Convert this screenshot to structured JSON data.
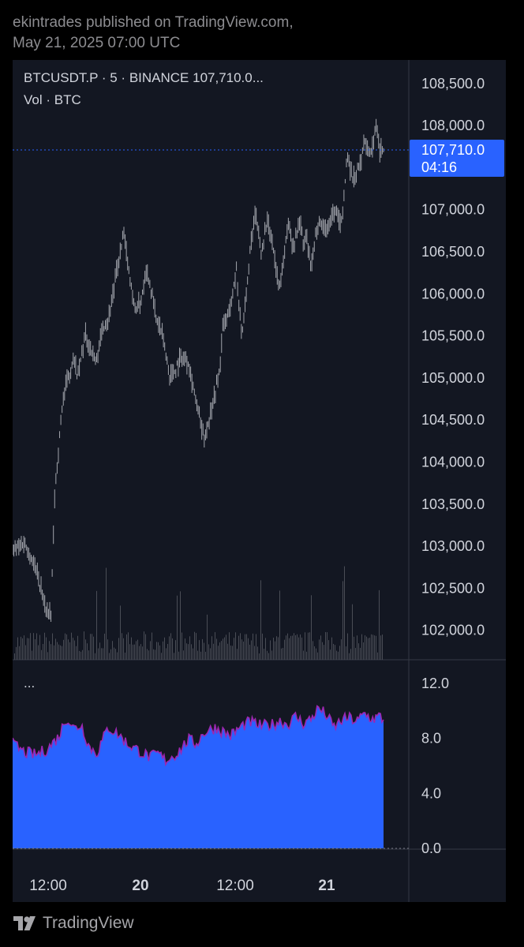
{
  "header": {
    "line1": "ekintrades published on TradingView.com,",
    "line2": "May 21, 2025 07:00 UTC"
  },
  "legend": {
    "symbol_line": "BTCUSDT.P · 5 · BINANCE  107,710.0...",
    "volume_line": "Vol · BTC",
    "indicator_line": "..."
  },
  "price_tag": {
    "price": "107,710.0",
    "countdown": "04:16"
  },
  "footer": {
    "brand": "TradingView",
    "logo_icon": "tradingview-logo-icon"
  },
  "colors": {
    "background": "#131722",
    "candle": "#a3a6ad",
    "volume": "#4a4d56",
    "indicator_fill": "#2962ff",
    "indicator_line": "#9c27b0",
    "price_line": "#2962ff",
    "price_tag": "#2962ff"
  },
  "chart_data": [
    {
      "type": "line",
      "title": "BTCUSDT.P · 5 · BINANCE",
      "x_tick_labels": [
        "12:00",
        "20",
        "12:00",
        "21"
      ],
      "y_ticks": [
        "108,500.0",
        "108,000.0",
        "107,000.0",
        "106,500.0",
        "106,000.0",
        "105,500.0",
        "105,000.0",
        "104,500.0",
        "104,000.0",
        "103,500.0",
        "103,000.0",
        "102,500.0",
        "102,000.0"
      ],
      "y_tick_values": [
        108500,
        108000,
        107000,
        106500,
        106000,
        105500,
        105000,
        104500,
        104000,
        103500,
        103000,
        102500,
        102000
      ],
      "ylim": [
        101650,
        108780
      ],
      "last_price": 107710.0,
      "grid": false,
      "series": [
        {
          "x": [
            0,
            0.03,
            0.06,
            0.085,
            0.1,
            0.11,
            0.13,
            0.145,
            0.16,
            0.17,
            0.19,
            0.2,
            0.22,
            0.235,
            0.25,
            0.27,
            0.29,
            0.31,
            0.32,
            0.335,
            0.35,
            0.37,
            0.375,
            0.39,
            0.41,
            0.42,
            0.44,
            0.46,
            0.47,
            0.49,
            0.5,
            0.52,
            0.54,
            0.55,
            0.57,
            0.585,
            0.6,
            0.62,
            0.635,
            0.65,
            0.665,
            0.68,
            0.695,
            0.705,
            0.72,
            0.735,
            0.75,
            0.76,
            0.77,
            0.78,
            0.8,
            0.82,
            0.84,
            0.86,
            0.87,
            0.875,
            0.89,
            0.91,
            0.92,
            0.935,
            0.95,
            0.96,
            0.97
          ],
          "values": [
            102950,
            103050,
            102750,
            102300,
            102150,
            103600,
            104700,
            105000,
            105250,
            105000,
            105500,
            105400,
            105200,
            105600,
            105700,
            106200,
            106700,
            106100,
            105800,
            105900,
            106300,
            105900,
            105700,
            105550,
            105050,
            105050,
            105250,
            105200,
            104950,
            104500,
            104250,
            104650,
            105050,
            105600,
            105850,
            106300,
            105450,
            106450,
            106950,
            106500,
            106850,
            106600,
            106100,
            106250,
            106850,
            106550,
            106900,
            106600,
            106650,
            106300,
            106900,
            106750,
            107000,
            106850,
            107350,
            107650,
            107350,
            107550,
            107850,
            107650,
            107950,
            107700,
            107710
          ]
        }
      ]
    },
    {
      "type": "area",
      "y_ticks": [
        "12.0",
        "8.0",
        "4.0",
        "0.0"
      ],
      "y_tick_values": [
        12,
        8,
        4,
        0
      ],
      "ylim": [
        0,
        12.8
      ],
      "series": [
        {
          "x": [
            0,
            0.03,
            0.06,
            0.09,
            0.12,
            0.14,
            0.15,
            0.16,
            0.18,
            0.2,
            0.22,
            0.25,
            0.28,
            0.3,
            0.33,
            0.36,
            0.38,
            0.4,
            0.43,
            0.46,
            0.48,
            0.5,
            0.53,
            0.55,
            0.57,
            0.6,
            0.62,
            0.65,
            0.68,
            0.7,
            0.72,
            0.74,
            0.76,
            0.78,
            0.8,
            0.82,
            0.84,
            0.86,
            0.88,
            0.9,
            0.92,
            0.94,
            0.96,
            0.97
          ],
          "values": [
            7.6,
            7.0,
            6.8,
            7.2,
            8.1,
            9.5,
            9.2,
            8.7,
            9.0,
            7.4,
            6.9,
            8.8,
            8.2,
            7.6,
            7.1,
            6.6,
            6.9,
            6.4,
            6.9,
            7.9,
            7.6,
            8.4,
            8.8,
            8.5,
            8.2,
            8.9,
            9.2,
            8.9,
            9.0,
            9.3,
            9.0,
            9.6,
            9.1,
            9.4,
            10.2,
            9.7,
            8.8,
            9.3,
            9.5,
            9.2,
            9.8,
            9.4,
            9.6,
            9.3
          ]
        }
      ]
    }
  ]
}
